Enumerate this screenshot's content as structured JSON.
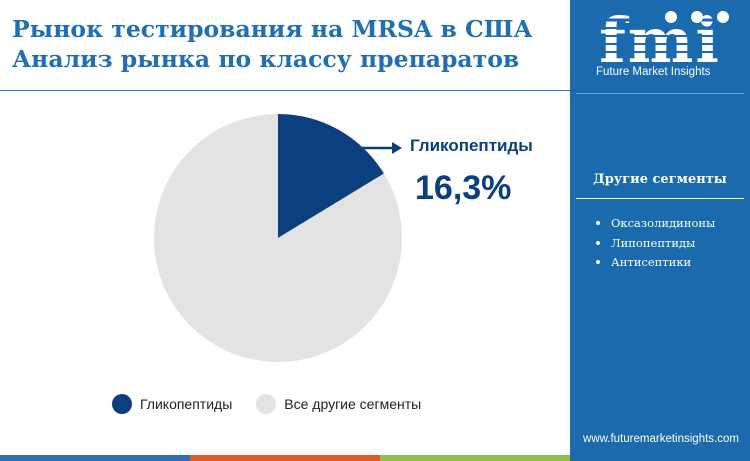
{
  "title": {
    "line1": "Рынок тестирования на MRSA в США",
    "line2": "Анализ рынка по классу препаратов"
  },
  "chart_data": {
    "type": "pie",
    "title": "Рынок тестирования на MRSA в США Анализ рынка по классу препаратов",
    "slices": [
      {
        "name": "Гликопептиды",
        "value": 16.3,
        "color": "#0b3f7e"
      },
      {
        "name": "Все другие сегменты",
        "value": 83.7,
        "color": "#e3e3e3"
      }
    ],
    "annotation": {
      "label": "Гликопептиды",
      "value": "16,3%"
    },
    "legend_position": "bottom"
  },
  "legend": [
    {
      "label": "Гликопептиды",
      "color": "#0b3f7e"
    },
    {
      "label": "Все другие сегменты",
      "color": "#e3e3e3"
    }
  ],
  "sidebar": {
    "logo_text": "fmi",
    "brand": "Future Market Insights",
    "segments_title": "Другие сегменты",
    "segments": [
      "Оксазолидиноны",
      "Липопептиды",
      "Антисептики"
    ],
    "website": "www.futuremarketinsights.com",
    "background": "#1a6aad"
  },
  "bottom_bar_colors": [
    "#2f6fb0",
    "#e0592a",
    "#8cc04f"
  ]
}
